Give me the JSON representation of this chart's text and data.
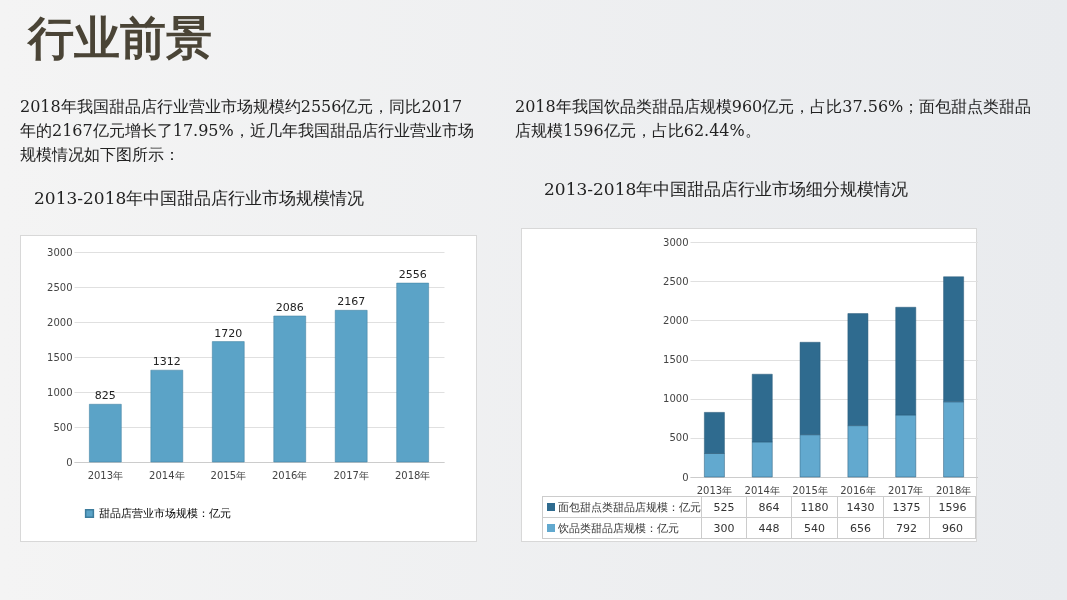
{
  "chart_data": [
    {
      "type": "bar",
      "title": "2013-2018年中国甜品店行业市场规模情况",
      "annotations": [
        "行业前景",
        "2018年我国甜品店行业营业市场规模约2556亿元，同比2017年的2167亿元增长了17.95%，近几年我国甜品店行业营业市场规模情况如下图所示："
      ],
      "categories": [
        "2013年",
        "2014年",
        "2015年",
        "2016年",
        "2017年",
        "2018年"
      ],
      "series": [
        {
          "name": "甜品店营业市场规模：亿元",
          "color": "#5ba3c7",
          "values": [
            825,
            1312,
            1720,
            2086,
            2167,
            2556
          ]
        }
      ],
      "ylim": [
        0,
        3000
      ],
      "yticks": [
        0,
        500,
        1000,
        1500,
        2000,
        2500,
        3000
      ],
      "grid": "y",
      "data_labels": true,
      "legend": "bottom"
    },
    {
      "type": "bar",
      "title": "2013-2018年中国甜品店行业市场细分规模情况",
      "annotations": [
        "2018年我国饮品类甜品店规模960亿元，占比37.56%；面包甜点类甜品店规模1596亿元，占比62.44%。"
      ],
      "categories": [
        "2013年",
        "2014年",
        "2015年",
        "2016年",
        "2017年",
        "2018年"
      ],
      "series": [
        {
          "name": "饮品类甜品店规模：亿元",
          "color": "#62a9cf",
          "values": [
            300,
            448,
            540,
            656,
            792,
            960
          ]
        },
        {
          "name": "面包甜点类甜品店规模：亿元",
          "color": "#2f6b8f",
          "values": [
            525,
            864,
            1180,
            1430,
            1375,
            1596
          ]
        }
      ],
      "stacked": true,
      "ylim": [
        0,
        3000
      ],
      "yticks": [
        0,
        500,
        1000,
        1500,
        2000,
        2500,
        3000
      ],
      "grid": "y",
      "data_labels": true,
      "legend": "bottom"
    }
  ]
}
